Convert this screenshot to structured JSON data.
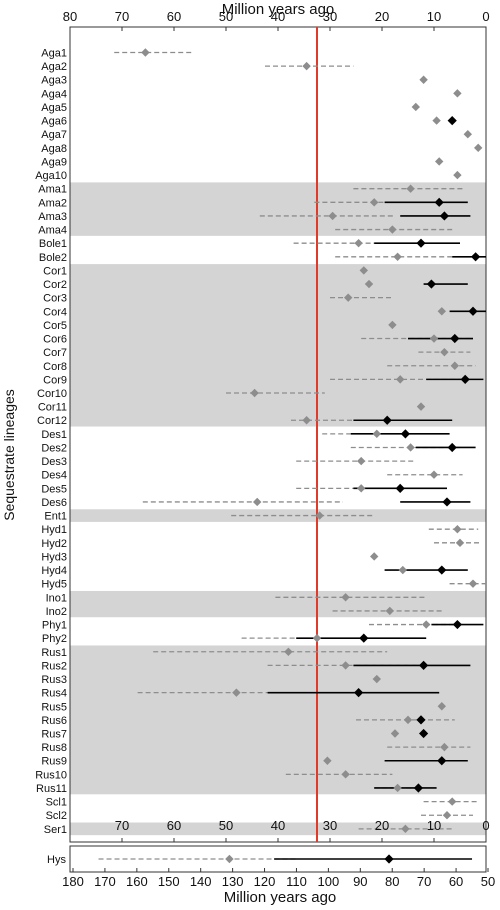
{
  "chart_data": {
    "type": "scatter",
    "title": "",
    "top_axis": {
      "label": "Million years ago",
      "ticks": [
        "80",
        "70",
        "60",
        "50",
        "40",
        "30",
        "20",
        "10",
        "0"
      ]
    },
    "ylabel": "Sequestrate lineages",
    "reference_line": {
      "value": 32.5,
      "color": "#e03a2a"
    },
    "shaded_groups": [
      "Ama",
      "Cor",
      "Ent",
      "Ino",
      "Rus",
      "Ser"
    ],
    "colors": {
      "gray_point": "#8d8d8d",
      "black_point": "#000000",
      "band": "#d4d4d4",
      "gray_line": "#8d8d8d"
    },
    "rows": [
      {
        "label": "Aga1",
        "gray": {
          "v": 65.5,
          "lo": 56.5,
          "hi": 71.5
        }
      },
      {
        "label": "Aga2",
        "gray": {
          "v": 34.5,
          "lo": 25.5,
          "hi": 42.5
        }
      },
      {
        "label": "Aga3",
        "gray": {
          "v": 12
        }
      },
      {
        "label": "Aga4",
        "gray": {
          "v": 5.5
        }
      },
      {
        "label": "Aga5",
        "gray": {
          "v": 13.5
        }
      },
      {
        "label": "Aga6",
        "gray": {
          "v": 9.5
        },
        "black": {
          "v": 6.5
        }
      },
      {
        "label": "Aga7",
        "gray": {
          "v": 3.5
        }
      },
      {
        "label": "Aga8",
        "gray": {
          "v": 1.5
        }
      },
      {
        "label": "Aga9",
        "gray": {
          "v": 9
        }
      },
      {
        "label": "Aga10",
        "gray": {
          "v": 5.5
        }
      },
      {
        "label": "Ama1",
        "gray": {
          "v": 14.5,
          "lo": 4.5,
          "hi": 25.5
        }
      },
      {
        "label": "Ama2",
        "gray": {
          "v": 21.5,
          "lo": 10.5,
          "hi": 33
        },
        "black": {
          "v": 9,
          "lo": 3.5,
          "hi": 19.5
        }
      },
      {
        "label": "Ama3",
        "gray": {
          "v": 29.5,
          "lo": 17.5,
          "hi": 43.5
        },
        "black": {
          "v": 8,
          "lo": 3,
          "hi": 16.5
        }
      },
      {
        "label": "Ama4",
        "gray": {
          "v": 18,
          "lo": 6.5,
          "hi": 29
        }
      },
      {
        "label": "Bole1",
        "gray": {
          "v": 24.5,
          "lo": 14.5,
          "hi": 37
        },
        "black": {
          "v": 12.5,
          "lo": 5,
          "hi": 21.5
        }
      },
      {
        "label": "Bole2",
        "gray": {
          "v": 17,
          "lo": 6.5,
          "hi": 29
        },
        "black": {
          "v": 2,
          "lo": 0,
          "hi": 6.5
        }
      },
      {
        "label": "Cor1",
        "gray": {
          "v": 23.5
        }
      },
      {
        "label": "Cor2",
        "gray": {
          "v": 22.5
        },
        "black": {
          "v": 10.5,
          "lo": 3.5,
          "hi": 12
        }
      },
      {
        "label": "Cor3",
        "gray": {
          "v": 26.5,
          "lo": 18,
          "hi": 30
        }
      },
      {
        "label": "Cor4",
        "gray": {
          "v": 8.5
        },
        "black": {
          "v": 2.5,
          "lo": 0,
          "hi": 7
        }
      },
      {
        "label": "Cor5",
        "gray": {
          "v": 18
        }
      },
      {
        "label": "Cor6",
        "gray": {
          "v": 10,
          "lo": 3,
          "hi": 24
        },
        "black": {
          "v": 6,
          "lo": 2.5,
          "hi": 15
        }
      },
      {
        "label": "Cor7",
        "gray": {
          "v": 8,
          "lo": 3,
          "hi": 13
        }
      },
      {
        "label": "Cor8",
        "gray": {
          "v": 6,
          "lo": 2,
          "hi": 19
        }
      },
      {
        "label": "Cor9",
        "gray": {
          "v": 16.5,
          "lo": 4,
          "hi": 30
        },
        "black": {
          "v": 4,
          "lo": 0.5,
          "hi": 11.5
        }
      },
      {
        "label": "Cor10",
        "gray": {
          "v": 44.5,
          "lo": 31,
          "hi": 50
        }
      },
      {
        "label": "Cor11",
        "gray": {
          "v": 12.5
        }
      },
      {
        "label": "Cor12",
        "gray": {
          "v": 34.5,
          "lo": 20,
          "hi": 37.5
        },
        "black": {
          "v": 19,
          "lo": 6.5,
          "hi": 25.5
        }
      },
      {
        "label": "Des1",
        "gray": {
          "v": 21,
          "lo": 11.5,
          "hi": 31.5
        },
        "black": {
          "v": 15.5,
          "lo": 7,
          "hi": 26
        }
      },
      {
        "label": "Des2",
        "gray": {
          "v": 14.5,
          "lo": 5,
          "hi": 26
        },
        "black": {
          "v": 6.5,
          "lo": 2,
          "hi": 13.5
        }
      },
      {
        "label": "Des3",
        "gray": {
          "v": 24,
          "lo": 14,
          "hi": 36.5
        }
      },
      {
        "label": "Des4",
        "gray": {
          "v": 10,
          "lo": 4.5,
          "hi": 19
        }
      },
      {
        "label": "Des5",
        "gray": {
          "v": 24,
          "lo": 13,
          "hi": 36.5
        },
        "black": {
          "v": 16.5,
          "lo": 7.5,
          "hi": 25.5
        }
      },
      {
        "label": "Des6",
        "gray": {
          "v": 44,
          "lo": 27.5,
          "hi": 66
        },
        "black": {
          "v": 7.5,
          "lo": 3,
          "hi": 16.5
        }
      },
      {
        "label": "Ent1",
        "gray": {
          "v": 32,
          "lo": 21.5,
          "hi": 49
        }
      },
      {
        "label": "Hyd1",
        "gray": {
          "v": 5.5,
          "lo": 1.5,
          "hi": 11
        }
      },
      {
        "label": "Hyd2",
        "gray": {
          "v": 5,
          "lo": 1,
          "hi": 10
        }
      },
      {
        "label": "Hyd3",
        "gray": {
          "v": 21.5
        }
      },
      {
        "label": "Hyd4",
        "gray": {
          "v": 16
        },
        "black": {
          "v": 8.5,
          "lo": 3.5,
          "hi": 19.5
        }
      },
      {
        "label": "Hyd5",
        "gray": {
          "v": 2.5,
          "lo": 0,
          "hi": 7
        }
      },
      {
        "label": "Ino1",
        "gray": {
          "v": 27,
          "lo": 11.5,
          "hi": 40.5
        }
      },
      {
        "label": "Ino2",
        "gray": {
          "v": 18.5,
          "lo": 8,
          "hi": 29.5
        }
      },
      {
        "label": "Phy1",
        "gray": {
          "v": 11.5,
          "lo": 6,
          "hi": 22.5
        },
        "black": {
          "v": 5.5,
          "lo": 0.5,
          "hi": 10.5
        }
      },
      {
        "label": "Phy2",
        "gray": {
          "v": 32.5,
          "lo": 24.5,
          "hi": 47
        },
        "black": {
          "v": 23.5,
          "lo": 11.5,
          "hi": 36.5
        }
      },
      {
        "label": "Rus1",
        "gray": {
          "v": 38,
          "lo": 19,
          "hi": 64
        }
      },
      {
        "label": "Rus2",
        "gray": {
          "v": 27,
          "lo": 13,
          "hi": 42
        },
        "black": {
          "v": 12,
          "lo": 3,
          "hi": 25.5
        }
      },
      {
        "label": "Rus3",
        "gray": {
          "v": 21
        }
      },
      {
        "label": "Rus4",
        "gray": {
          "v": 48,
          "lo": 30.5,
          "hi": 67
        },
        "black": {
          "v": 24.5,
          "lo": 9,
          "hi": 42
        }
      },
      {
        "label": "Rus5",
        "gray": {
          "v": 8.5
        }
      },
      {
        "label": "Rus6",
        "gray": {
          "v": 15,
          "lo": 6,
          "hi": 25
        },
        "black": {
          "v": 12.5
        }
      },
      {
        "label": "Rus7",
        "gray": {
          "v": 17.5
        },
        "black": {
          "v": 12
        }
      },
      {
        "label": "Rus8",
        "gray": {
          "v": 8,
          "lo": 3,
          "hi": 19
        }
      },
      {
        "label": "Rus9",
        "gray": {
          "v": 30.5
        },
        "black": {
          "v": 8.5,
          "lo": 3.5,
          "hi": 19.5
        }
      },
      {
        "label": "Rus10",
        "gray": {
          "v": 27,
          "lo": 18,
          "hi": 38.5
        }
      },
      {
        "label": "Rus11",
        "gray": {
          "v": 17,
          "lo": 12.5,
          "hi": 21.5
        },
        "black": {
          "v": 13,
          "lo": 9.5,
          "hi": 21.5
        }
      },
      {
        "label": "Scl1",
        "gray": {
          "v": 6.5,
          "lo": 1.5,
          "hi": 12
        }
      },
      {
        "label": "Scl2",
        "gray": {
          "v": 7.5,
          "lo": 2.5,
          "hi": 12.5
        }
      },
      {
        "label": "Ser1",
        "gray": {
          "v": 15.5,
          "lo": 6.5,
          "hi": 24.5
        }
      }
    ],
    "inset_axis_ticks": [
      "70",
      "60",
      "50",
      "40",
      "30",
      "20",
      "10",
      "0"
    ],
    "hys_row": {
      "label": "Hys",
      "gray": {
        "v": 131,
        "lo": 110,
        "hi": 172
      },
      "black": {
        "v": 81,
        "lo": 55,
        "hi": 117
      }
    },
    "bottom_axis": {
      "label": "Million years ago",
      "ticks": [
        "180",
        "170",
        "160",
        "150",
        "140",
        "130",
        "120",
        "110",
        "100",
        "90",
        "80",
        "70",
        "60",
        "50"
      ]
    }
  }
}
